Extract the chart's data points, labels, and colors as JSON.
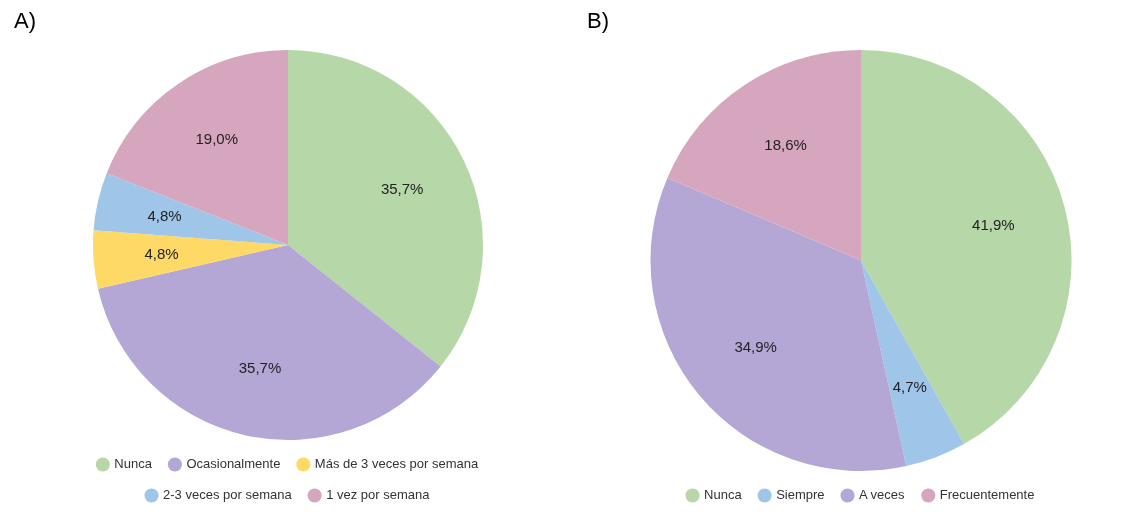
{
  "chart_data": [
    {
      "type": "pie",
      "title": "A)",
      "categories": [
        "Nunca",
        "Ocasionalmente",
        "Más de 3 veces por semana",
        "2-3 veces por semana",
        "1 vez por semana"
      ],
      "values": [
        35.7,
        35.7,
        4.8,
        4.8,
        19.0
      ],
      "colors": [
        "#b6d7a8",
        "#b4a7d6",
        "#ffd966",
        "#9fc5e8",
        "#d5a6bd"
      ],
      "value_labels": [
        "35,7%",
        "35,7%",
        "4,8%",
        "4,8%",
        "19,0%"
      ],
      "legend": "bottom"
    },
    {
      "type": "pie",
      "title": "B)",
      "categories": [
        "Nunca",
        "Siempre",
        "A veces",
        "Frecuentemente"
      ],
      "values": [
        41.9,
        4.7,
        34.9,
        18.6
      ],
      "colors": [
        "#b6d7a8",
        "#9fc5e8",
        "#b4a7d6",
        "#d5a6bd"
      ],
      "value_labels": [
        "41,9%",
        "4,7%",
        "34,9%",
        "18,6%"
      ],
      "legend": "bottom"
    }
  ]
}
